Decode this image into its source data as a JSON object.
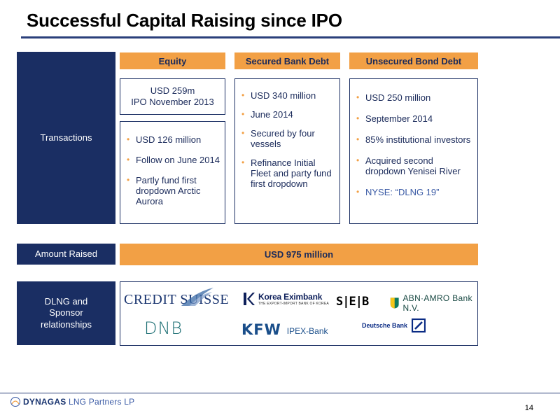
{
  "title": "Successful Capital Raising since IPO",
  "labels": {
    "transactions": "Transactions",
    "amount_raised": "Amount Raised",
    "relationships": "DLNG and Sponsor relationships"
  },
  "columns": {
    "equity": {
      "header": "Equity",
      "ipo_line1": "USD 259m",
      "ipo_line2": "IPO November 2013",
      "bullets": [
        "USD 126 million",
        "Follow on June 2014",
        "Partly fund first dropdown Arctic Aurora"
      ]
    },
    "secured": {
      "header": "Secured Bank Debt",
      "bullets": [
        "USD 340 million",
        "June 2014",
        "Secured by four vessels",
        "Refinance Initial Fleet and party fund first dropdown"
      ]
    },
    "unsecured": {
      "header": "Unsecured Bond Debt",
      "bullets": [
        "USD 250 million",
        "September 2014",
        "85% institutional investors",
        "Acquired second dropdown Yenisei River",
        "NYSE: “DLNG 19”"
      ]
    }
  },
  "amount_total": "USD 975 million",
  "logos": {
    "credit_suisse": "CREDIT SUISSE",
    "dnb": "DNB",
    "korea_exim_name": "Korea Eximbank",
    "korea_exim_sub": "THE EXPORT-IMPORT BANK OF KOREA",
    "seb": "S|E|B",
    "abn_amro": "ABN·AMRO Bank N.V.",
    "kfw": "KFW",
    "kfw_sub": "IPEX-Bank",
    "deutsche_bank": "Deutsche Bank"
  },
  "footer": {
    "company_bold": "DYNAGAS",
    "company_light": " LNG Partners LP",
    "page_number": "14"
  },
  "colors": {
    "navy": "#1a2e63",
    "orange": "#f2a045",
    "text": "#1a2a5a"
  }
}
